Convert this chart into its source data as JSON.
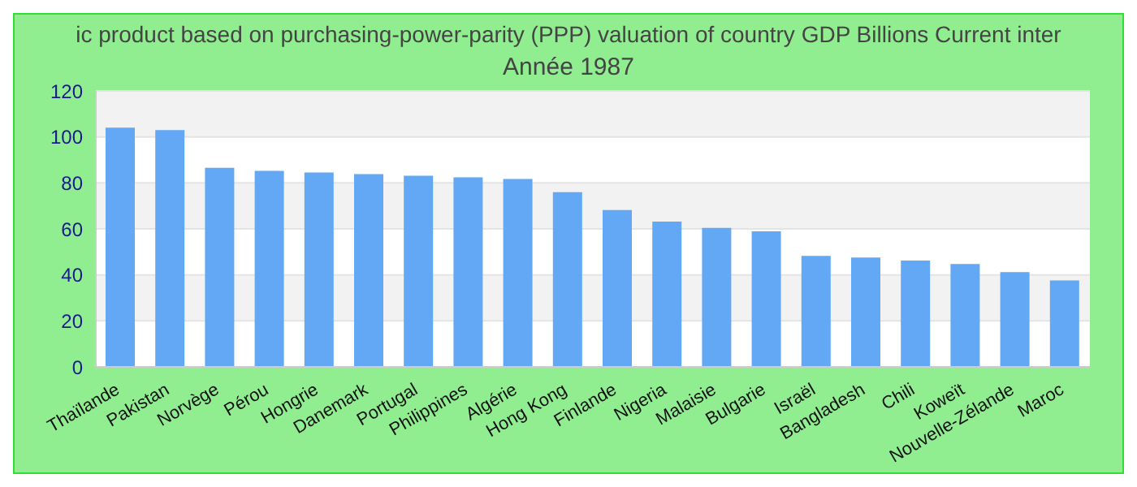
{
  "chart_data": {
    "type": "bar",
    "title": "ic product based on purchasing-power-parity (PPP) valuation of country GDP Billions Current inter",
    "subtitle": "Année 1987",
    "categories": [
      "Thaïlande",
      "Pakistan",
      "Norvège",
      "Pérou",
      "Hongrie",
      "Danemark",
      "Portugal",
      "Philippines",
      "Algérie",
      "Hong Kong",
      "Finlande",
      "Nigeria",
      "Malaisie",
      "Bulgarie",
      "Israël",
      "Bangladesh",
      "Chili",
      "Koweït",
      "Nouvelle-Zélande",
      "Maroc"
    ],
    "values": [
      104,
      103,
      86.6,
      85.2,
      84.5,
      83.8,
      83.1,
      82.4,
      81.7,
      76,
      68.2,
      63.2,
      60.4,
      58.9,
      48.3,
      47.6,
      46.2,
      44.7,
      41.2,
      37.6
    ],
    "color": "#63a8f5",
    "ylim": [
      0,
      120
    ],
    "yticks": [
      0,
      20,
      40,
      60,
      80,
      100,
      120
    ],
    "grid": "y"
  }
}
